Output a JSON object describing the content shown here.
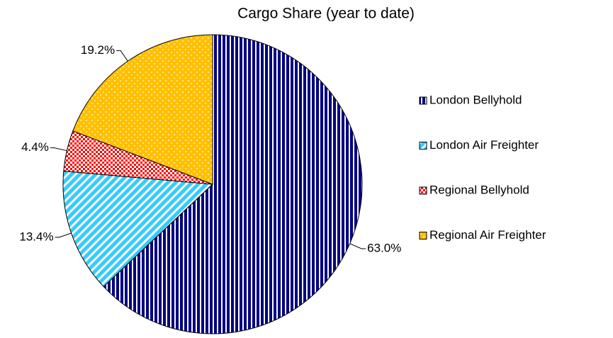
{
  "chart_data": {
    "type": "pie",
    "title": "Cargo Share (year to date)",
    "categories": [
      "London Bellyhold",
      "London Air Freighter",
      "Regional Bellyhold",
      "Regional Air Freighter"
    ],
    "values": [
      63.0,
      13.4,
      4.4,
      19.2
    ],
    "value_labels": [
      "63.0%",
      "13.4%",
      "4.4%",
      "19.2%"
    ],
    "colors": [
      "#000080",
      "#33ccff",
      "#ff0000",
      "#ffc000"
    ]
  }
}
